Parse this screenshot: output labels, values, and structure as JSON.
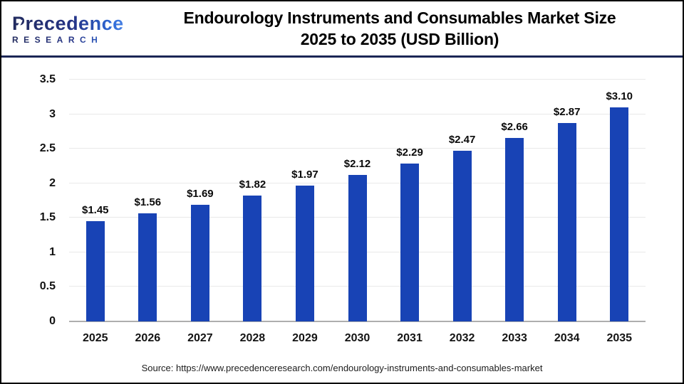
{
  "header": {
    "logo": {
      "line1": "Precedence",
      "line2": "RESEARCH"
    },
    "title_line1": "Endourology Instruments and Consumables Market Size",
    "title_line2": "2025 to 2035 (USD Billion)"
  },
  "chart_data": {
    "type": "bar",
    "title": "Endourology Instruments and Consumables Market Size 2025 to 2035 (USD Billion)",
    "xlabel": "",
    "ylabel": "",
    "categories": [
      "2025",
      "2026",
      "2027",
      "2028",
      "2029",
      "2030",
      "2031",
      "2032",
      "2033",
      "2034",
      "2035"
    ],
    "values": [
      1.45,
      1.56,
      1.69,
      1.82,
      1.97,
      2.12,
      2.29,
      2.47,
      2.66,
      2.87,
      3.1
    ],
    "value_labels": [
      "$1.45",
      "$1.56",
      "$1.69",
      "$1.82",
      "$1.97",
      "$2.12",
      "$2.29",
      "$2.47",
      "$2.66",
      "$2.87",
      "$3.10"
    ],
    "ylim": [
      0,
      3.5
    ],
    "yticks": [
      {
        "v": 3.5,
        "label": "3.5"
      },
      {
        "v": 3,
        "label": "3"
      },
      {
        "v": 2.5,
        "label": "2.5"
      },
      {
        "v": 2,
        "label": "2"
      },
      {
        "v": 1.5,
        "label": "1.5"
      },
      {
        "v": 1,
        "label": "1"
      },
      {
        "v": 0.5,
        "label": "0.5"
      },
      {
        "v": 0,
        "label": "0"
      }
    ],
    "grid": true,
    "legend": "none",
    "bar_color": "#1843b5"
  },
  "footer": {
    "source": "Source: https://www.precedenceresearch.com/endourology-instruments-and-consumables-market"
  },
  "colors": {
    "bar": "#1843b5",
    "header_rule": "#1b2655",
    "baseline": "#aeaeae",
    "gridline": "#e9e9e9",
    "logo_navy": "#222b5e",
    "logo_blue": "#2f6bd9",
    "title_text": "#000000",
    "background": "#ffffff",
    "frame_border": "#000000"
  }
}
